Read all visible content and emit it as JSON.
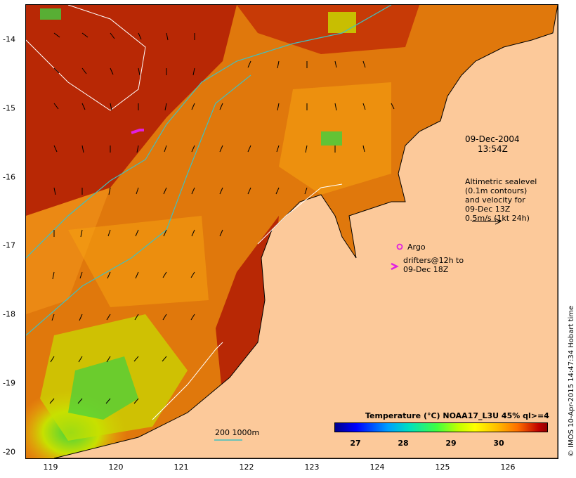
{
  "map": {
    "x_ticks": [
      "119",
      "120",
      "121",
      "122",
      "123",
      "124",
      "125",
      "126"
    ],
    "y_ticks": [
      "-14",
      "-15",
      "-16",
      "-17",
      "-18",
      "-19",
      "-20"
    ],
    "date_line1": "09-Dec-2004",
    "date_line2": "13:54Z",
    "altimetry_lines": [
      "Altimetric sealevel",
      "(0.1m contours)",
      "and velocity for",
      "09-Dec 13Z",
      "0.5m/s (1kt 24h)"
    ],
    "argo_label": "Argo",
    "drifter_lines": [
      "drifters@12h to",
      "09-Dec 18Z"
    ],
    "isobath_label": "200  1000m",
    "legend_title": "Temperature (°C) NOAA17_L3U 45% ql>=4",
    "colorbar_ticks": [
      "27",
      "28",
      "29",
      "30"
    ],
    "credit": "© IMOS 10-Apr-2015 14:47:34 Hobart time",
    "colors": {
      "land": "#fcc99a",
      "hot": "#b01a05",
      "warm": "#e86a0a",
      "mid": "#f5a010",
      "cool": "#c8e000",
      "coolest": "#40d040",
      "isobath": "#40c0c0",
      "argo": "#e020e0"
    }
  }
}
